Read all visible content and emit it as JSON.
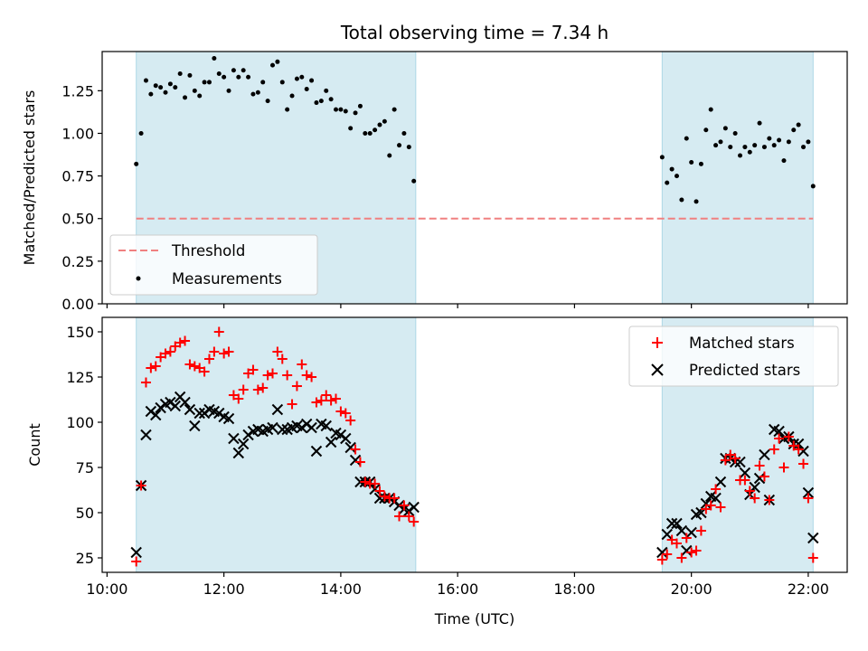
{
  "title": "Total observing time = 7.34 h",
  "colors": {
    "span_fill": "#add8e6",
    "threshold": "#f08080",
    "matched": "#ff0000",
    "predicted": "#000000",
    "measurements": "#000000"
  },
  "chart_data": [
    {
      "type": "scatter",
      "name": "ratio",
      "ylabel": "Matched/Predicted stars",
      "ylim": [
        0.0,
        1.48
      ],
      "yticks": [
        0.0,
        0.25,
        0.5,
        0.75,
        1.0,
        1.25
      ],
      "yticklabels": [
        "0.00",
        "0.25",
        "0.50",
        "0.75",
        "1.00",
        "1.25"
      ],
      "xlim": [
        "09:55",
        "22:40"
      ],
      "xticks": [
        "10:00",
        "12:00",
        "14:00",
        "16:00",
        "18:00",
        "20:00",
        "22:00"
      ],
      "observing_spans": [
        [
          "10:30",
          "15:17"
        ],
        [
          "19:30",
          "22:05"
        ]
      ],
      "threshold": {
        "label": "Threshold",
        "value": 0.5,
        "from": "10:30",
        "to": "22:05"
      },
      "legend": {
        "position": "lower-left",
        "entries": [
          "Threshold",
          "Measurements"
        ]
      },
      "series": [
        {
          "name": "Measurements",
          "x": [
            "10:30",
            "10:35",
            "10:40",
            "10:45",
            "10:50",
            "10:55",
            "11:00",
            "11:05",
            "11:10",
            "11:15",
            "11:20",
            "11:25",
            "11:30",
            "11:35",
            "11:40",
            "11:45",
            "11:50",
            "11:55",
            "12:00",
            "12:05",
            "12:10",
            "12:15",
            "12:20",
            "12:25",
            "12:30",
            "12:35",
            "12:40",
            "12:45",
            "12:50",
            "12:55",
            "13:00",
            "13:05",
            "13:10",
            "13:15",
            "13:20",
            "13:25",
            "13:30",
            "13:35",
            "13:40",
            "13:45",
            "13:50",
            "13:55",
            "14:00",
            "14:05",
            "14:10",
            "14:15",
            "14:20",
            "14:25",
            "14:30",
            "14:35",
            "14:40",
            "14:45",
            "14:50",
            "14:55",
            "15:00",
            "15:05",
            "15:10",
            "15:15",
            "19:30",
            "19:35",
            "19:40",
            "19:45",
            "19:50",
            "19:55",
            "20:00",
            "20:05",
            "20:10",
            "20:15",
            "20:20",
            "20:25",
            "20:30",
            "20:35",
            "20:40",
            "20:45",
            "20:50",
            "20:55",
            "21:00",
            "21:05",
            "21:10",
            "21:15",
            "21:20",
            "21:25",
            "21:30",
            "21:35",
            "21:40",
            "21:45",
            "21:50",
            "21:55",
            "22:00",
            "22:05"
          ],
          "y": [
            0.82,
            1.0,
            1.31,
            1.23,
            1.28,
            1.27,
            1.24,
            1.29,
            1.27,
            1.35,
            1.21,
            1.34,
            1.25,
            1.22,
            1.3,
            1.3,
            1.44,
            1.35,
            1.33,
            1.25,
            1.37,
            1.33,
            1.37,
            1.33,
            1.23,
            1.24,
            1.3,
            1.19,
            1.4,
            1.42,
            1.3,
            1.14,
            1.22,
            1.32,
            1.33,
            1.26,
            1.31,
            1.18,
            1.19,
            1.25,
            1.2,
            1.14,
            1.14,
            1.13,
            1.03,
            1.12,
            1.16,
            1.0,
            1.0,
            1.02,
            1.05,
            1.07,
            0.87,
            1.14,
            0.93,
            1.0,
            0.92,
            0.72,
            0.86,
            0.71,
            0.79,
            0.75,
            0.61,
            0.97,
            0.83,
            0.6,
            0.82,
            1.02,
            1.14,
            0.93,
            0.95,
            1.03,
            0.92,
            1.0,
            0.87,
            0.92,
            0.89,
            0.93,
            1.06,
            0.92,
            0.97,
            0.93,
            0.96,
            0.84,
            0.95,
            1.02,
            1.05,
            0.92,
            0.95,
            0.69
          ]
        }
      ]
    },
    {
      "type": "scatter",
      "name": "counts",
      "ylabel": "Count",
      "xlabel": "Time (UTC)",
      "ylim": [
        17,
        158
      ],
      "yticks": [
        25,
        50,
        75,
        100,
        125,
        150
      ],
      "yticklabels": [
        "25",
        "50",
        "75",
        "100",
        "125",
        "150"
      ],
      "xlim": [
        "09:55",
        "22:40"
      ],
      "xticks": [
        "10:00",
        "12:00",
        "14:00",
        "16:00",
        "18:00",
        "20:00",
        "22:00"
      ],
      "xticklabels": [
        "10:00",
        "12:00",
        "14:00",
        "16:00",
        "18:00",
        "20:00",
        "22:00"
      ],
      "observing_spans": [
        [
          "10:30",
          "15:17"
        ],
        [
          "19:30",
          "22:05"
        ]
      ],
      "legend": {
        "position": "top-right",
        "entries": [
          "Matched stars",
          "Predicted stars"
        ]
      },
      "x": [
        "10:30",
        "10:35",
        "10:40",
        "10:45",
        "10:50",
        "10:55",
        "11:00",
        "11:05",
        "11:10",
        "11:15",
        "11:20",
        "11:25",
        "11:30",
        "11:35",
        "11:40",
        "11:45",
        "11:50",
        "11:55",
        "12:00",
        "12:05",
        "12:10",
        "12:15",
        "12:20",
        "12:25",
        "12:30",
        "12:35",
        "12:40",
        "12:45",
        "12:50",
        "12:55",
        "13:00",
        "13:05",
        "13:10",
        "13:15",
        "13:20",
        "13:25",
        "13:30",
        "13:35",
        "13:40",
        "13:45",
        "13:50",
        "13:55",
        "14:00",
        "14:05",
        "14:10",
        "14:15",
        "14:20",
        "14:25",
        "14:30",
        "14:35",
        "14:40",
        "14:45",
        "14:50",
        "14:55",
        "15:00",
        "15:05",
        "15:10",
        "15:15",
        "19:30",
        "19:35",
        "19:40",
        "19:45",
        "19:50",
        "19:55",
        "20:00",
        "20:05",
        "20:10",
        "20:15",
        "20:20",
        "20:25",
        "20:30",
        "20:35",
        "20:40",
        "20:45",
        "20:50",
        "20:55",
        "21:00",
        "21:05",
        "21:10",
        "21:15",
        "21:20",
        "21:25",
        "21:30",
        "21:35",
        "21:40",
        "21:45",
        "21:50",
        "21:55",
        "22:00",
        "22:05"
      ],
      "series": [
        {
          "name": "Matched stars",
          "marker": "plus",
          "values": [
            23,
            65,
            122,
            130,
            131,
            136,
            138,
            139,
            142,
            144,
            145,
            132,
            131,
            130,
            128,
            135,
            139,
            150,
            138,
            139,
            115,
            113,
            118,
            127,
            129,
            118,
            119,
            126,
            127,
            139,
            135,
            126,
            110,
            120,
            132,
            126,
            125,
            111,
            112,
            115,
            112,
            113,
            106,
            105,
            101,
            85,
            78,
            67,
            66,
            66,
            62,
            59,
            58,
            58,
            48,
            54,
            48,
            45,
            24,
            27,
            35,
            33,
            25,
            36,
            28,
            29,
            40,
            52,
            54,
            63,
            53,
            79,
            82,
            80,
            68,
            68,
            62,
            58,
            76,
            70,
            57,
            85,
            91,
            75,
            92,
            87,
            85,
            77,
            58,
            25
          ]
        },
        {
          "name": "Predicted stars",
          "marker": "x",
          "values": [
            28,
            65,
            93,
            106,
            104,
            108,
            110,
            111,
            109,
            114,
            111,
            107,
            98,
            105,
            105,
            107,
            106,
            105,
            103,
            102,
            91,
            83,
            88,
            93,
            95,
            96,
            95,
            96,
            97,
            107,
            96,
            96,
            97,
            98,
            97,
            99,
            97,
            84,
            99,
            98,
            89,
            94,
            93,
            91,
            86,
            79,
            67,
            67,
            67,
            63,
            58,
            58,
            58,
            56,
            54,
            52,
            51,
            53,
            28,
            38,
            44,
            44,
            40,
            29,
            39,
            49,
            50,
            55,
            59,
            58,
            67,
            80,
            80,
            78,
            78,
            72,
            60,
            64,
            69,
            82,
            57,
            96,
            95,
            91,
            92,
            88,
            88,
            84,
            61,
            36
          ]
        }
      ]
    }
  ]
}
